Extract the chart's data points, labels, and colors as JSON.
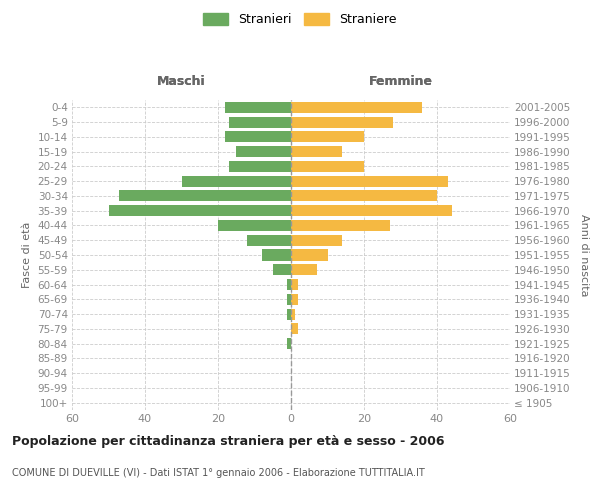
{
  "age_groups": [
    "100+",
    "95-99",
    "90-94",
    "85-89",
    "80-84",
    "75-79",
    "70-74",
    "65-69",
    "60-64",
    "55-59",
    "50-54",
    "45-49",
    "40-44",
    "35-39",
    "30-34",
    "25-29",
    "20-24",
    "15-19",
    "10-14",
    "5-9",
    "0-4"
  ],
  "birth_years": [
    "≤ 1905",
    "1906-1910",
    "1911-1915",
    "1916-1920",
    "1921-1925",
    "1926-1930",
    "1931-1935",
    "1936-1940",
    "1941-1945",
    "1946-1950",
    "1951-1955",
    "1956-1960",
    "1961-1965",
    "1966-1970",
    "1971-1975",
    "1976-1980",
    "1981-1985",
    "1986-1990",
    "1991-1995",
    "1996-2000",
    "2001-2005"
  ],
  "males": [
    0,
    0,
    0,
    0,
    1,
    0,
    1,
    1,
    1,
    5,
    8,
    12,
    20,
    50,
    47,
    30,
    17,
    15,
    18,
    17,
    18
  ],
  "females": [
    0,
    0,
    0,
    0,
    0,
    2,
    1,
    2,
    2,
    7,
    10,
    14,
    27,
    44,
    40,
    43,
    20,
    14,
    20,
    28,
    36
  ],
  "male_color": "#6aaa5f",
  "female_color": "#f5b942",
  "male_label": "Stranieri",
  "female_label": "Straniere",
  "title": "Popolazione per cittadinanza straniera per età e sesso - 2006",
  "subtitle": "COMUNE DI DUEVILLE (VI) - Dati ISTAT 1° gennaio 2006 - Elaborazione TUTTITALIA.IT",
  "xlabel_left": "Maschi",
  "xlabel_right": "Femmine",
  "ylabel_left": "Fasce di età",
  "ylabel_right": "Anni di nascita",
  "xlim": 60,
  "background_color": "#ffffff",
  "grid_color": "#cccccc",
  "tick_color": "#888888",
  "label_color": "#666666"
}
